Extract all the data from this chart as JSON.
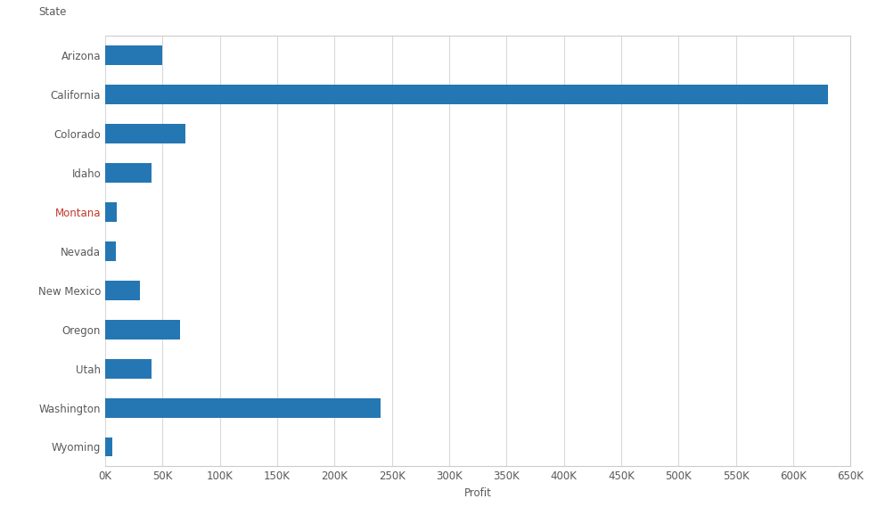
{
  "states": [
    "Arizona",
    "California",
    "Colorado",
    "Idaho",
    "Montana",
    "Nevada",
    "New Mexico",
    "Oregon",
    "Utah",
    "Washington",
    "Wyoming"
  ],
  "profits": [
    50000,
    630000,
    70000,
    40000,
    10000,
    9000,
    30000,
    65000,
    40000,
    240000,
    6000
  ],
  "bar_color": "#2477b3",
  "ylabel_label": "State",
  "xlabel_label": "Profit",
  "xlim": [
    0,
    650000
  ],
  "xtick_step": 50000,
  "background_color": "#ffffff",
  "plot_bg_color": "#ffffff",
  "grid_color": "#d9d9d9",
  "label_color_default": "#595959",
  "label_color_montana": "#c0392b",
  "tick_label_color": "#595959",
  "bar_height": 0.5,
  "axis_label_fontsize": 8.5,
  "tick_fontsize": 8.5
}
